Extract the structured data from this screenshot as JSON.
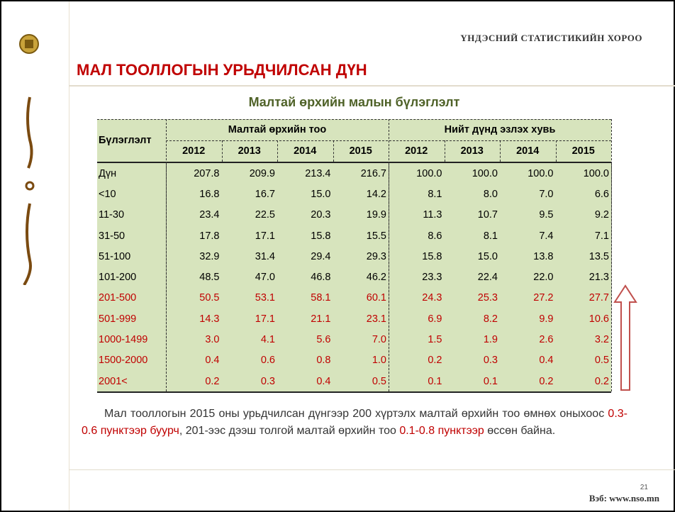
{
  "header": {
    "organization": "ҮНДЭСНИЙ СТАТИСТИКИЙН ХОРОО",
    "title": "МАЛ ТООЛЛОГЫН УРЬДЧИЛСАН ДҮН"
  },
  "table": {
    "title": "Малтай өрхийн малын бүлэглэлт",
    "row_header": "Бүлэглэлт",
    "groups": [
      {
        "label": "Малтай өрхийн тоо",
        "years": [
          "2012",
          "2013",
          "2014",
          "2015"
        ]
      },
      {
        "label": "Нийт дүнд эзлэх хувь",
        "years": [
          "2012",
          "2013",
          "2014",
          "2015"
        ]
      }
    ],
    "rows": [
      {
        "label": "Дүн",
        "values": [
          "207.8",
          "209.9",
          "213.4",
          "216.7",
          "100.0",
          "100.0",
          "100.0",
          "100.0"
        ],
        "color": "#000000"
      },
      {
        "label": "<10",
        "values": [
          "16.8",
          "16.7",
          "15.0",
          "14.2",
          "8.1",
          "8.0",
          "7.0",
          "6.6"
        ],
        "color": "#000000"
      },
      {
        "label": "11-30",
        "values": [
          "23.4",
          "22.5",
          "20.3",
          "19.9",
          "11.3",
          "10.7",
          "9.5",
          "9.2"
        ],
        "color": "#000000"
      },
      {
        "label": "31-50",
        "values": [
          "17.8",
          "17.1",
          "15.8",
          "15.5",
          "8.6",
          "8.1",
          "7.4",
          "7.1"
        ],
        "color": "#000000"
      },
      {
        "label": "51-100",
        "values": [
          "32.9",
          "31.4",
          "29.4",
          "29.3",
          "15.8",
          "15.0",
          "13.8",
          "13.5"
        ],
        "color": "#000000"
      },
      {
        "label": "101-200",
        "values": [
          "48.5",
          "47.0",
          "46.8",
          "46.2",
          "23.3",
          "22.4",
          "22.0",
          "21.3"
        ],
        "color": "#000000"
      },
      {
        "label": "201-500",
        "values": [
          "50.5",
          "53.1",
          "58.1",
          "60.1",
          "24.3",
          "25.3",
          "27.2",
          "27.7"
        ],
        "color": "#c00000"
      },
      {
        "label": "501-999",
        "values": [
          "14.3",
          "17.1",
          "21.1",
          "23.1",
          "6.9",
          "8.2",
          "9.9",
          "10.6"
        ],
        "color": "#c00000"
      },
      {
        "label": "1000-1499",
        "values": [
          "3.0",
          "4.1",
          "5.6",
          "7.0",
          "1.5",
          "1.9",
          "2.6",
          "3.2"
        ],
        "color": "#c00000"
      },
      {
        "label": "1500-2000",
        "values": [
          "0.4",
          "0.6",
          "0.8",
          "1.0",
          "0.2",
          "0.3",
          "0.4",
          "0.5"
        ],
        "color": "#c00000"
      },
      {
        "label": "2001<",
        "values": [
          "0.2",
          "0.3",
          "0.4",
          "0.5",
          "0.1",
          "0.1",
          "0.2",
          "0.2"
        ],
        "color": "#c00000"
      }
    ]
  },
  "paragraph": {
    "parts": [
      "Мал тооллогын 2015 оны урьдчилсан дүнгээр 200 хүртэлх малтай өрхийн тоо өмнөх оныхоос ",
      "0.3-0.6 пунктээр буурч",
      ", 201-ээс дээш толгой малтай өрхийн тоо ",
      "0.1-0.8 пунктээр",
      "  өссөн  байна."
    ]
  },
  "footer": {
    "website": "Вэб: www.nso.mn",
    "page": "21"
  }
}
